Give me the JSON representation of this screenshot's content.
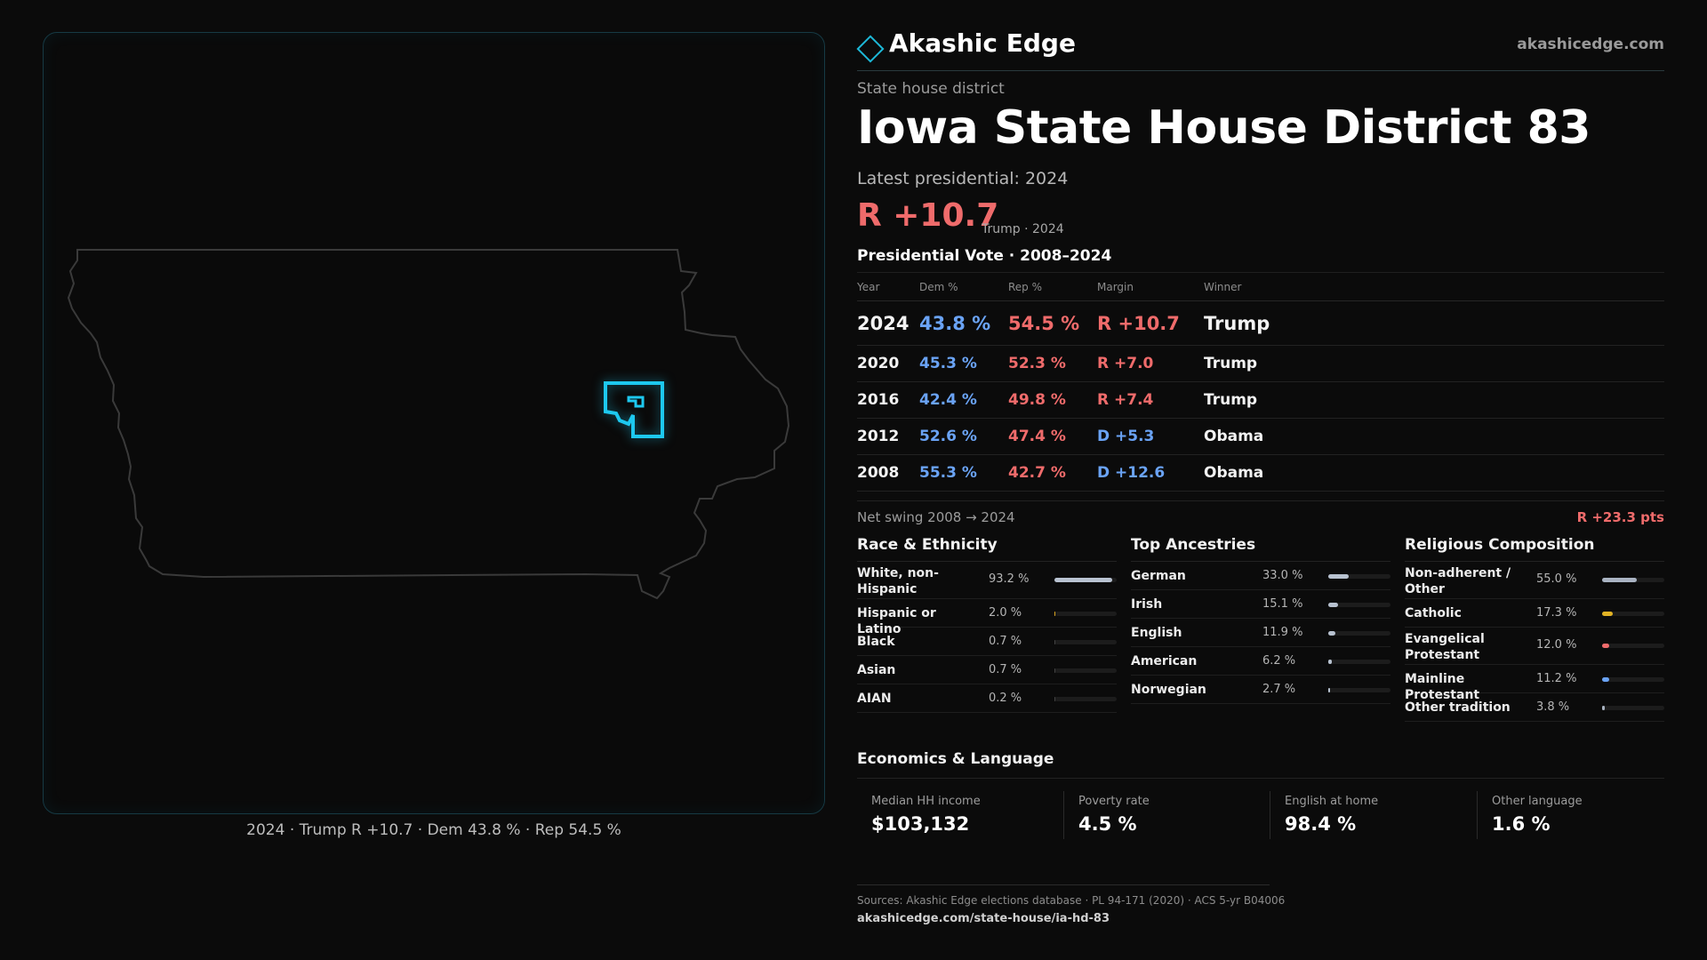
{
  "brand": {
    "name": "Akashic Edge",
    "url": "akashicedge.com"
  },
  "header": {
    "eyebrow": "State house district",
    "title": "Iowa State House District 83",
    "latest": "Latest presidential: 2024",
    "margin": "R +10.7",
    "margin_note": "Trump · 2024"
  },
  "map": {
    "caption": "2024 · Trump R +10.7 · Dem 43.8 % · Rep 54.5 %",
    "colors": {
      "state_outline": "#3a3a3a",
      "district": "#1dc8ef",
      "panel_border": "#163a44"
    }
  },
  "vote_table": {
    "title": "Presidential Vote · 2008–2024",
    "headers": {
      "year": "Year",
      "dem": "Dem %",
      "rep": "Rep %",
      "margin": "Margin",
      "winner": "Winner"
    },
    "rows": [
      {
        "year": "2024",
        "dem": "43.8 %",
        "rep": "54.5 %",
        "margin": "R +10.7",
        "winner": "Trump"
      },
      {
        "year": "2020",
        "dem": "45.3 %",
        "rep": "52.3 %",
        "margin": "R +7.0",
        "winner": "Trump"
      },
      {
        "year": "2016",
        "dem": "42.4 %",
        "rep": "49.8 %",
        "margin": "R +7.4",
        "winner": "Trump"
      },
      {
        "year": "2012",
        "dem": "52.6 %",
        "rep": "47.4 %",
        "margin": "D +5.3",
        "winner": "Obama"
      },
      {
        "year": "2008",
        "dem": "55.3 %",
        "rep": "42.7 %",
        "margin": "D +12.6",
        "winner": "Obama"
      }
    ],
    "colors": {
      "dem": "#6aa3f5",
      "rep": "#ef6b6b"
    }
  },
  "swing": {
    "label": "Net swing 2008 → 2024",
    "value": "R +23.3 pts"
  },
  "race": {
    "title": "Race & Ethnicity",
    "items": [
      {
        "label": "White, non-Hispanic",
        "pct": "93.2 %",
        "value": 93.2,
        "color": "#b8c2d0"
      },
      {
        "label": "Hispanic or Latino",
        "pct": "2.0 %",
        "value": 2.0,
        "color": "#d9a520"
      },
      {
        "label": "Black",
        "pct": "0.7 %",
        "value": 0.7,
        "color": "#444"
      },
      {
        "label": "Asian",
        "pct": "0.7 %",
        "value": 0.7,
        "color": "#444"
      },
      {
        "label": "AIAN",
        "pct": "0.2 %",
        "value": 0.2,
        "color": "#444"
      }
    ]
  },
  "ancestry": {
    "title": "Top Ancestries",
    "items": [
      {
        "label": "German",
        "pct": "33.0 %",
        "value": 33.0,
        "color": "#b8c2d0"
      },
      {
        "label": "Irish",
        "pct": "15.1 %",
        "value": 15.1,
        "color": "#b8c2d0"
      },
      {
        "label": "English",
        "pct": "11.9 %",
        "value": 11.9,
        "color": "#b8c2d0"
      },
      {
        "label": "American",
        "pct": "6.2 %",
        "value": 6.2,
        "color": "#b8c2d0"
      },
      {
        "label": "Norwegian",
        "pct": "2.7 %",
        "value": 2.7,
        "color": "#b8c2d0"
      }
    ]
  },
  "religion": {
    "title": "Religious Composition",
    "items": [
      {
        "label": "Non-adherent / Other",
        "pct": "55.0 %",
        "value": 55.0,
        "color": "#a9b3c2"
      },
      {
        "label": "Catholic",
        "pct": "17.3 %",
        "value": 17.3,
        "color": "#e2b324"
      },
      {
        "label": "Evangelical Protestant",
        "pct": "12.0 %",
        "value": 12.0,
        "color": "#ef6b6b"
      },
      {
        "label": "Mainline Protestant",
        "pct": "11.2 %",
        "value": 11.2,
        "color": "#6aa3f5"
      },
      {
        "label": "Other tradition",
        "pct": "3.8 %",
        "value": 3.8,
        "color": "#a9b3c2"
      }
    ]
  },
  "economics": {
    "title": "Economics & Language",
    "cells": [
      {
        "label": "Median HH income",
        "value": "$103,132"
      },
      {
        "label": "Poverty rate",
        "value": "4.5 %"
      },
      {
        "label": "English at home",
        "value": "98.4 %"
      },
      {
        "label": "Other language",
        "value": "1.6 %"
      }
    ]
  },
  "footer": {
    "sources": "Sources: Akashic Edge elections database · PL 94-171 (2020) · ACS 5-yr B04006",
    "url": "akashicedge.com/state-house/ia-hd-83"
  }
}
